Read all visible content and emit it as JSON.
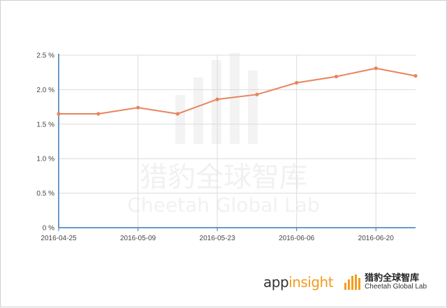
{
  "chart_data": {
    "type": "line",
    "x": [
      "2016-04-25",
      "2016-05-02",
      "2016-05-09",
      "2016-05-16",
      "2016-05-23",
      "2016-05-30",
      "2016-06-06",
      "2016-06-13",
      "2016-06-20",
      "2016-06-27"
    ],
    "series": [
      {
        "values": [
          1.65,
          1.65,
          1.74,
          1.65,
          1.86,
          1.93,
          2.1,
          2.19,
          2.31,
          2.2
        ]
      }
    ],
    "xticks": [
      "2016-04-25",
      "2016-05-09",
      "2016-05-23",
      "2016-06-06",
      "2016-06-20"
    ],
    "yticks": [
      0,
      0.5,
      1.0,
      1.5,
      2.0,
      2.5
    ],
    "ytick_labels": [
      "0 %",
      "0.5 %",
      "1.0 %",
      "1.5 %",
      "2.0 %",
      "2.5 %"
    ],
    "ylim": [
      0,
      2.5
    ],
    "grid": true,
    "title": "",
    "xlabel": "",
    "ylabel": "",
    "colors": {
      "line": "#e8845c",
      "axis": "#3c78b4",
      "grid": "#dcdcdc"
    }
  },
  "watermark": {
    "cn": "猎豹全球智库",
    "en": "Cheetah Global Lab"
  },
  "footer": {
    "appinsight_prefix": "app",
    "appinsight_suffix": "insight",
    "cheetah_cn": "猎豹全球智库",
    "cheetah_en": "Cheetah Global Lab",
    "accent": "#f39c1e"
  }
}
